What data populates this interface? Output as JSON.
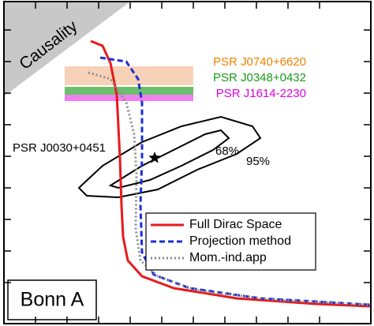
{
  "chart_data": {
    "type": "line",
    "xlim": [
      0,
      11.625
    ],
    "ylim": [
      0,
      10.2
    ],
    "xticks": [
      1,
      2,
      3,
      4,
      5,
      6,
      7,
      8,
      9,
      10
    ],
    "yticks": [
      1.3,
      2.3,
      3.3,
      4.3,
      5.3,
      6.3,
      7.3,
      8.3,
      9.3
    ],
    "causality": {
      "label": "Causality",
      "x": [
        0,
        4
      ],
      "y": [
        7.2,
        10.2
      ],
      "color": "#c8c8c8"
    },
    "bands": [
      {
        "name": "PSR J0740+6620",
        "x": [
          1.925,
          6.0
        ],
        "y": [
          7.55,
          8.15
        ],
        "color": "#f8d2b8",
        "text_color": "#f08000"
      },
      {
        "name": "PSR J0348+0432",
        "x": [
          1.925,
          6.0
        ],
        "y": [
          7.25,
          7.5
        ],
        "color": "#6cbf6c",
        "text_color": "#1a9a1a"
      },
      {
        "name": "PSR J1614-2230",
        "x": [
          1.925,
          6.0
        ],
        "y": [
          7.05,
          7.25
        ],
        "color": "#f080f0",
        "text_color": "#e000e0"
      }
    ],
    "contours": {
      "name": "PSR J0030+0451",
      "star": [
        4.775,
        5.25
      ],
      "levels": [
        {
          "label": "95%",
          "x": [
            2.375,
            3.125,
            4.375,
            5.625,
            6.875,
            7.875,
            8.125,
            7.375,
            6.125,
            4.875,
            3.625,
            2.625
          ],
          "y": [
            4.3,
            5.0,
            5.75,
            6.25,
            6.55,
            6.25,
            5.875,
            5.375,
            4.875,
            4.25,
            4.0,
            4.05
          ]
        },
        {
          "label": "68%",
          "x": [
            3.375,
            4.375,
            5.375,
            6.375,
            6.875,
            7.125,
            6.625,
            5.625,
            4.625,
            3.625
          ],
          "y": [
            4.375,
            5.0,
            5.5,
            6.0,
            6.125,
            5.875,
            5.5,
            5.0,
            4.55,
            4.3
          ]
        }
      ]
    },
    "series": [
      {
        "name": "Full Dirac Space",
        "color": "#e8191c",
        "style": "solid",
        "x": [
          2.75,
          3.125,
          3.375,
          3.575,
          3.675,
          3.725,
          3.775,
          3.925,
          4.375,
          5.375,
          7.375,
          9.875,
          11.6
        ],
        "y": [
          8.95,
          8.8,
          8.25,
          7.25,
          5.25,
          3.75,
          2.75,
          2.0,
          1.5,
          1.125,
          0.8,
          0.625,
          0.55
        ]
      },
      {
        "name": "Projection method",
        "color": "#1a2fd8",
        "style": "dashed",
        "x": [
          3.05,
          3.875,
          4.25,
          4.375,
          4.375,
          4.325,
          4.375,
          4.75,
          5.875,
          8.125,
          11.6
        ],
        "y": [
          8.425,
          8.3,
          7.75,
          7.0,
          5.25,
          3.75,
          2.25,
          1.55,
          1.125,
          0.8,
          0.6
        ]
      },
      {
        "name": "Mom.-ind.app",
        "color": "#8c8c8c",
        "style": "dotted",
        "x": [
          2.675,
          3.375,
          3.875,
          4.125,
          4.2,
          4.175,
          4.325,
          4.875,
          6.125,
          8.625,
          11.6
        ],
        "y": [
          7.95,
          7.75,
          7.0,
          6.0,
          4.75,
          3.0,
          2.0,
          1.5,
          1.05,
          0.75,
          0.6
        ]
      }
    ],
    "annotation": "Bonn A"
  }
}
